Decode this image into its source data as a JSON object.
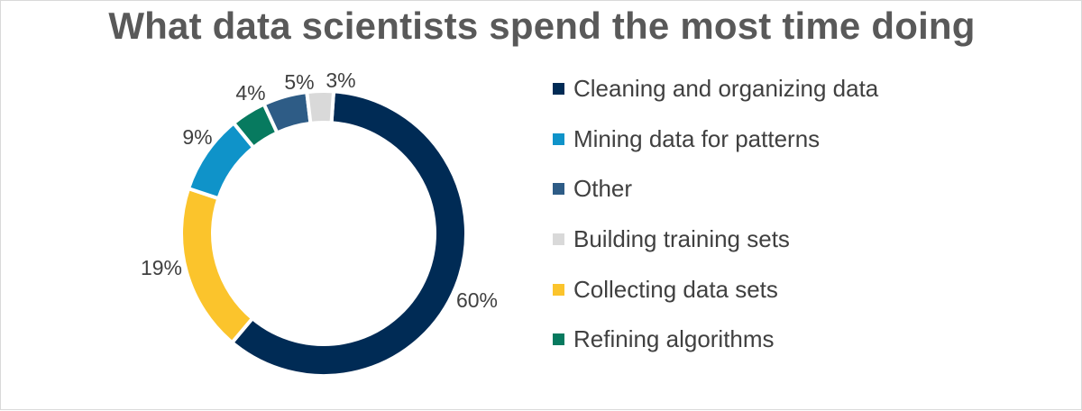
{
  "chart_data": {
    "type": "pie",
    "title": "What data scientists spend the most time doing",
    "slices": [
      {
        "name": "Cleaning and organizing data",
        "value": 60,
        "label": "60%",
        "color": "#002b55"
      },
      {
        "name": "Collecting data sets",
        "value": 19,
        "label": "19%",
        "color": "#fbc42c"
      },
      {
        "name": "Mining data for patterns",
        "value": 9,
        "label": "9%",
        "color": "#0f93c9"
      },
      {
        "name": "Refining algorithms",
        "value": 4,
        "label": "4%",
        "color": "#077a5f"
      },
      {
        "name": "Other",
        "value": 5,
        "label": "5%",
        "color": "#2e5c86"
      },
      {
        "name": "Building training sets",
        "value": 3,
        "label": "3%",
        "color": "#d9d9d9"
      }
    ],
    "legend": {
      "placement": "right",
      "entries": [
        {
          "name": "Cleaning and organizing data",
          "color": "#002b55"
        },
        {
          "name": "Mining data for patterns",
          "color": "#0f93c9"
        },
        {
          "name": "Other",
          "color": "#2e5c86"
        },
        {
          "name": "Building training sets",
          "color": "#d9d9d9"
        },
        {
          "name": "Collecting data sets",
          "color": "#fbc42c"
        },
        {
          "name": "Refining algorithms",
          "color": "#077a5f"
        }
      ]
    },
    "donut": true
  }
}
